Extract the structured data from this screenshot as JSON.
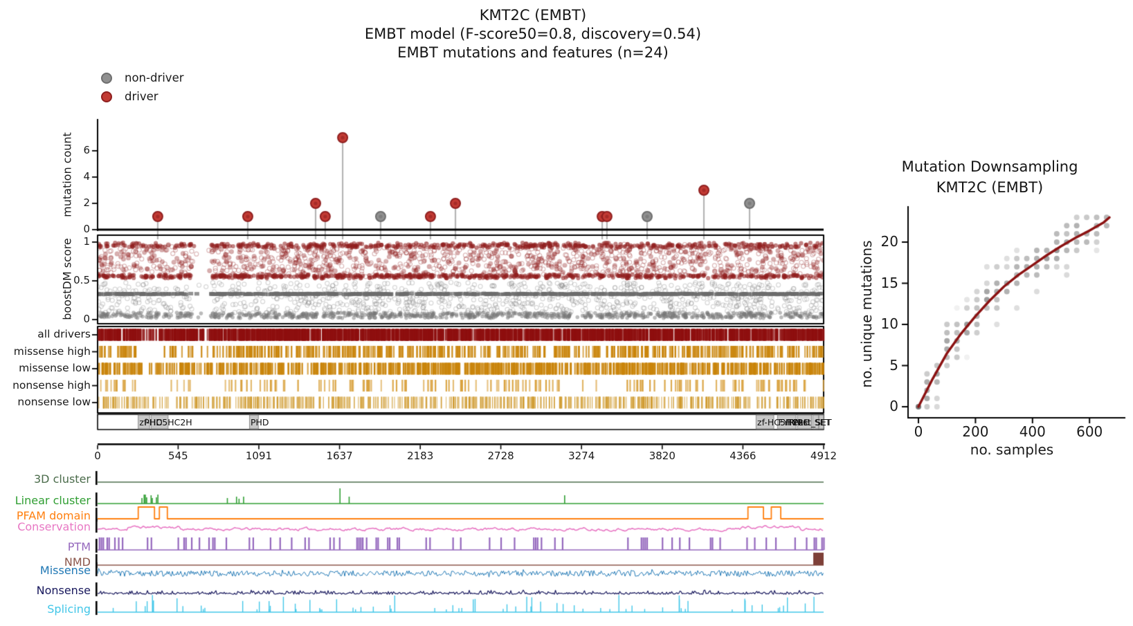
{
  "figure": {
    "title_lines": [
      "KMT2C (EMBT)",
      "EMBT model (F-score50=0.8, discovery=0.54)",
      "EMBT mutations and features (n=24)"
    ]
  },
  "legend": {
    "items": [
      {
        "label": "non-driver",
        "color": "#909090",
        "edge": "#6e6e6e"
      },
      {
        "label": "driver",
        "color": "#c23b34",
        "edge": "#8f1f1f"
      }
    ]
  },
  "chart_data": [
    {
      "name": "mutation_needle_plot",
      "type": "scatter",
      "ylabel": "mutation count",
      "yticks": [
        0,
        2,
        4,
        6
      ],
      "ylim": [
        0,
        7.6
      ],
      "xlim": [
        0,
        4912
      ],
      "stem_color": "#b4b4b4",
      "mutations": [
        {
          "pos": 407,
          "count": 1,
          "driver": true
        },
        {
          "pos": 1016,
          "count": 1,
          "driver": true
        },
        {
          "pos": 1475,
          "count": 2,
          "driver": true
        },
        {
          "pos": 1540,
          "count": 1,
          "driver": true
        },
        {
          "pos": 1658,
          "count": 7,
          "driver": true
        },
        {
          "pos": 1915,
          "count": 1,
          "driver": false
        },
        {
          "pos": 2252,
          "count": 1,
          "driver": true
        },
        {
          "pos": 2421,
          "count": 2,
          "driver": true
        },
        {
          "pos": 3414,
          "count": 1,
          "driver": true
        },
        {
          "pos": 3446,
          "count": 1,
          "driver": true
        },
        {
          "pos": 3718,
          "count": 1,
          "driver": false
        },
        {
          "pos": 4102,
          "count": 3,
          "driver": true
        },
        {
          "pos": 4411,
          "count": 2,
          "driver": false
        }
      ]
    },
    {
      "name": "boostdm_score_scatter",
      "type": "scatter",
      "ylabel": "boostDM score",
      "yticks": [
        0,
        0.5,
        1
      ],
      "driver_color": "#8f1d1d",
      "nondriver_color": "#6f6f6f",
      "n_driver": 2400,
      "n_nondriver": 2300,
      "driver_bands": [
        [
          0.955,
          0.02,
          0.22
        ],
        [
          0.9,
          0.04,
          0.12
        ],
        [
          0.82,
          0.05,
          0.13
        ],
        [
          0.72,
          0.05,
          0.13
        ],
        [
          0.63,
          0.04,
          0.12
        ],
        [
          0.56,
          0.015,
          0.28
        ]
      ],
      "nondriver_band_033": 0.33,
      "nondriver_band_low": [
        0.02,
        0.09
      ],
      "gap_aa": [
        640,
        770
      ],
      "sparse_aa": [
        480,
        560
      ],
      "seed_driver": 7,
      "seed_nondriver": 8
    },
    {
      "name": "driver_consequence_tracks",
      "type": "heatmap",
      "rows": [
        {
          "label": "all drivers",
          "color": "#8e0f0f",
          "n": 1600,
          "w": 2.5,
          "seed": 31,
          "gaps": [
            [
              295,
              390,
              0.2
            ],
            [
              650,
              745,
              0.5
            ]
          ]
        },
        {
          "label": "missense high",
          "color": "#c9840a",
          "n": 520,
          "w": 2.2,
          "seed": 32,
          "gaps": [
            [
              270,
              480,
              0.05
            ],
            [
              590,
              760,
              0.3
            ]
          ]
        },
        {
          "label": "missense low",
          "color": "#c9840a",
          "n": 850,
          "w": 2.2,
          "seed": 33,
          "gaps": [
            [
              300,
              460,
              0.35
            ],
            [
              660,
              740,
              0.5
            ]
          ]
        },
        {
          "label": "nonsense high",
          "color": "#d9a23f",
          "n": 175,
          "w": 2.2,
          "seed": 34,
          "gaps": [
            [
              270,
              460,
              0.1
            ],
            [
              620,
              780,
              0.3
            ]
          ]
        },
        {
          "label": "nonsense low",
          "color": "#cf9a2e",
          "n": 650,
          "w": 1.2,
          "seed": 35,
          "gaps": [
            [
              300,
              440,
              0.5
            ]
          ]
        }
      ]
    },
    {
      "name": "protein_domain_track",
      "type": "domains",
      "xticks": [
        0,
        545,
        1091,
        1637,
        2183,
        2728,
        3274,
        3820,
        4366,
        4912
      ],
      "box_fill": "#c8c8c8",
      "box_edge": "#8a8a8a",
      "boxes": [
        {
          "label": "zf-HC5HC2H",
          "start": 275,
          "end": 352,
          "label_pos": 278
        },
        {
          "label": "PHD",
          "start": 362,
          "end": 477,
          "label_pos": 310
        },
        {
          "label": "PHD",
          "start": 1028,
          "end": 1088,
          "label_pos": 1030
        },
        {
          "label": "zf-HC5HC2H",
          "start": 4455,
          "end": 4575,
          "label_pos": 4458
        },
        {
          "label": "FYRN",
          "start": 4600,
          "end": 4725,
          "label_pos": 4600
        },
        {
          "label": "FYRC",
          "start": 4735,
          "end": 4830,
          "label_pos": 4660
        },
        {
          "label": "Post_SET",
          "start": 4838,
          "end": 4878,
          "label_pos": 4700
        },
        {
          "label": "SET",
          "start": 4880,
          "end": 4912,
          "label_pos": 4845
        }
      ]
    },
    {
      "name": "feature_tracks",
      "type": "tracks",
      "rows": [
        {
          "label": "3D cluster",
          "color": "#4a6b4a",
          "kind": "flat"
        },
        {
          "label": "Linear cluster",
          "color": "#2f9e32",
          "kind": "spikes",
          "spikes": [
            [
              300,
              8
            ],
            [
              315,
              13
            ],
            [
              323,
              13
            ],
            [
              332,
              9
            ],
            [
              362,
              12
            ],
            [
              370,
              8
            ],
            [
              398,
              9
            ],
            [
              408,
              13
            ],
            [
              878,
              8
            ],
            [
              940,
              10
            ],
            [
              957,
              7
            ],
            [
              988,
              10
            ],
            [
              1640,
              22
            ],
            [
              1702,
              10
            ],
            [
              3160,
              12
            ]
          ]
        },
        {
          "label": "PFAM domain",
          "color": "#ff7f0e",
          "kind": "pulses",
          "pulses": [
            [
              275,
              385
            ],
            [
              418,
              472
            ],
            [
              4400,
              4505
            ],
            [
              4558,
              4622
            ]
          ]
        },
        {
          "label": "Conservation",
          "color": "#e878c4",
          "kind": "noise",
          "amp": 9,
          "seed": 11
        },
        {
          "label": "PTM",
          "color": "#9467bd",
          "kind": "bars",
          "seed": 12,
          "dense_until": 170
        },
        {
          "label": "NMD",
          "color": "#8c564b",
          "kind": "flat-block",
          "block": [
            4842,
            4912
          ],
          "block_color": "#7e4038"
        },
        {
          "label": "Missense",
          "color": "#1f77b4",
          "kind": "noise-band",
          "amp": 4.2,
          "seed": 13
        },
        {
          "label": "Nonsense",
          "color": "#17175c",
          "kind": "noise-up",
          "amp": 4,
          "seed": 14
        },
        {
          "label": "Splicing",
          "color": "#41c6e8",
          "kind": "random-spikes",
          "seed": 15,
          "n": 78,
          "hmax": 22
        }
      ]
    },
    {
      "name": "mutation_downsampling",
      "type": "scatter+line",
      "title_lines": [
        "Mutation Downsampling",
        "KMT2C (EMBT)"
      ],
      "xlabel": "no. samples",
      "ylabel": "no. unique mutations",
      "xticks": [
        0,
        200,
        400,
        600
      ],
      "yticks": [
        0,
        5,
        10,
        15,
        20
      ],
      "curve_color": "#8b1212",
      "dot_color": "#505050",
      "curve": {
        "x": [
          0,
          50,
          100,
          150,
          200,
          250,
          300,
          350,
          400,
          450,
          500,
          550,
          600,
          650,
          670
        ],
        "y": [
          0,
          3.4,
          6.5,
          8.9,
          11,
          12.9,
          14.6,
          16,
          17.2,
          18.4,
          19.5,
          20.5,
          21.4,
          22.4,
          23
        ]
      },
      "dots": {
        "x_start": 30,
        "x_step": 35,
        "x_end": 660,
        "spread": 4,
        "seed": 21
      }
    }
  ]
}
